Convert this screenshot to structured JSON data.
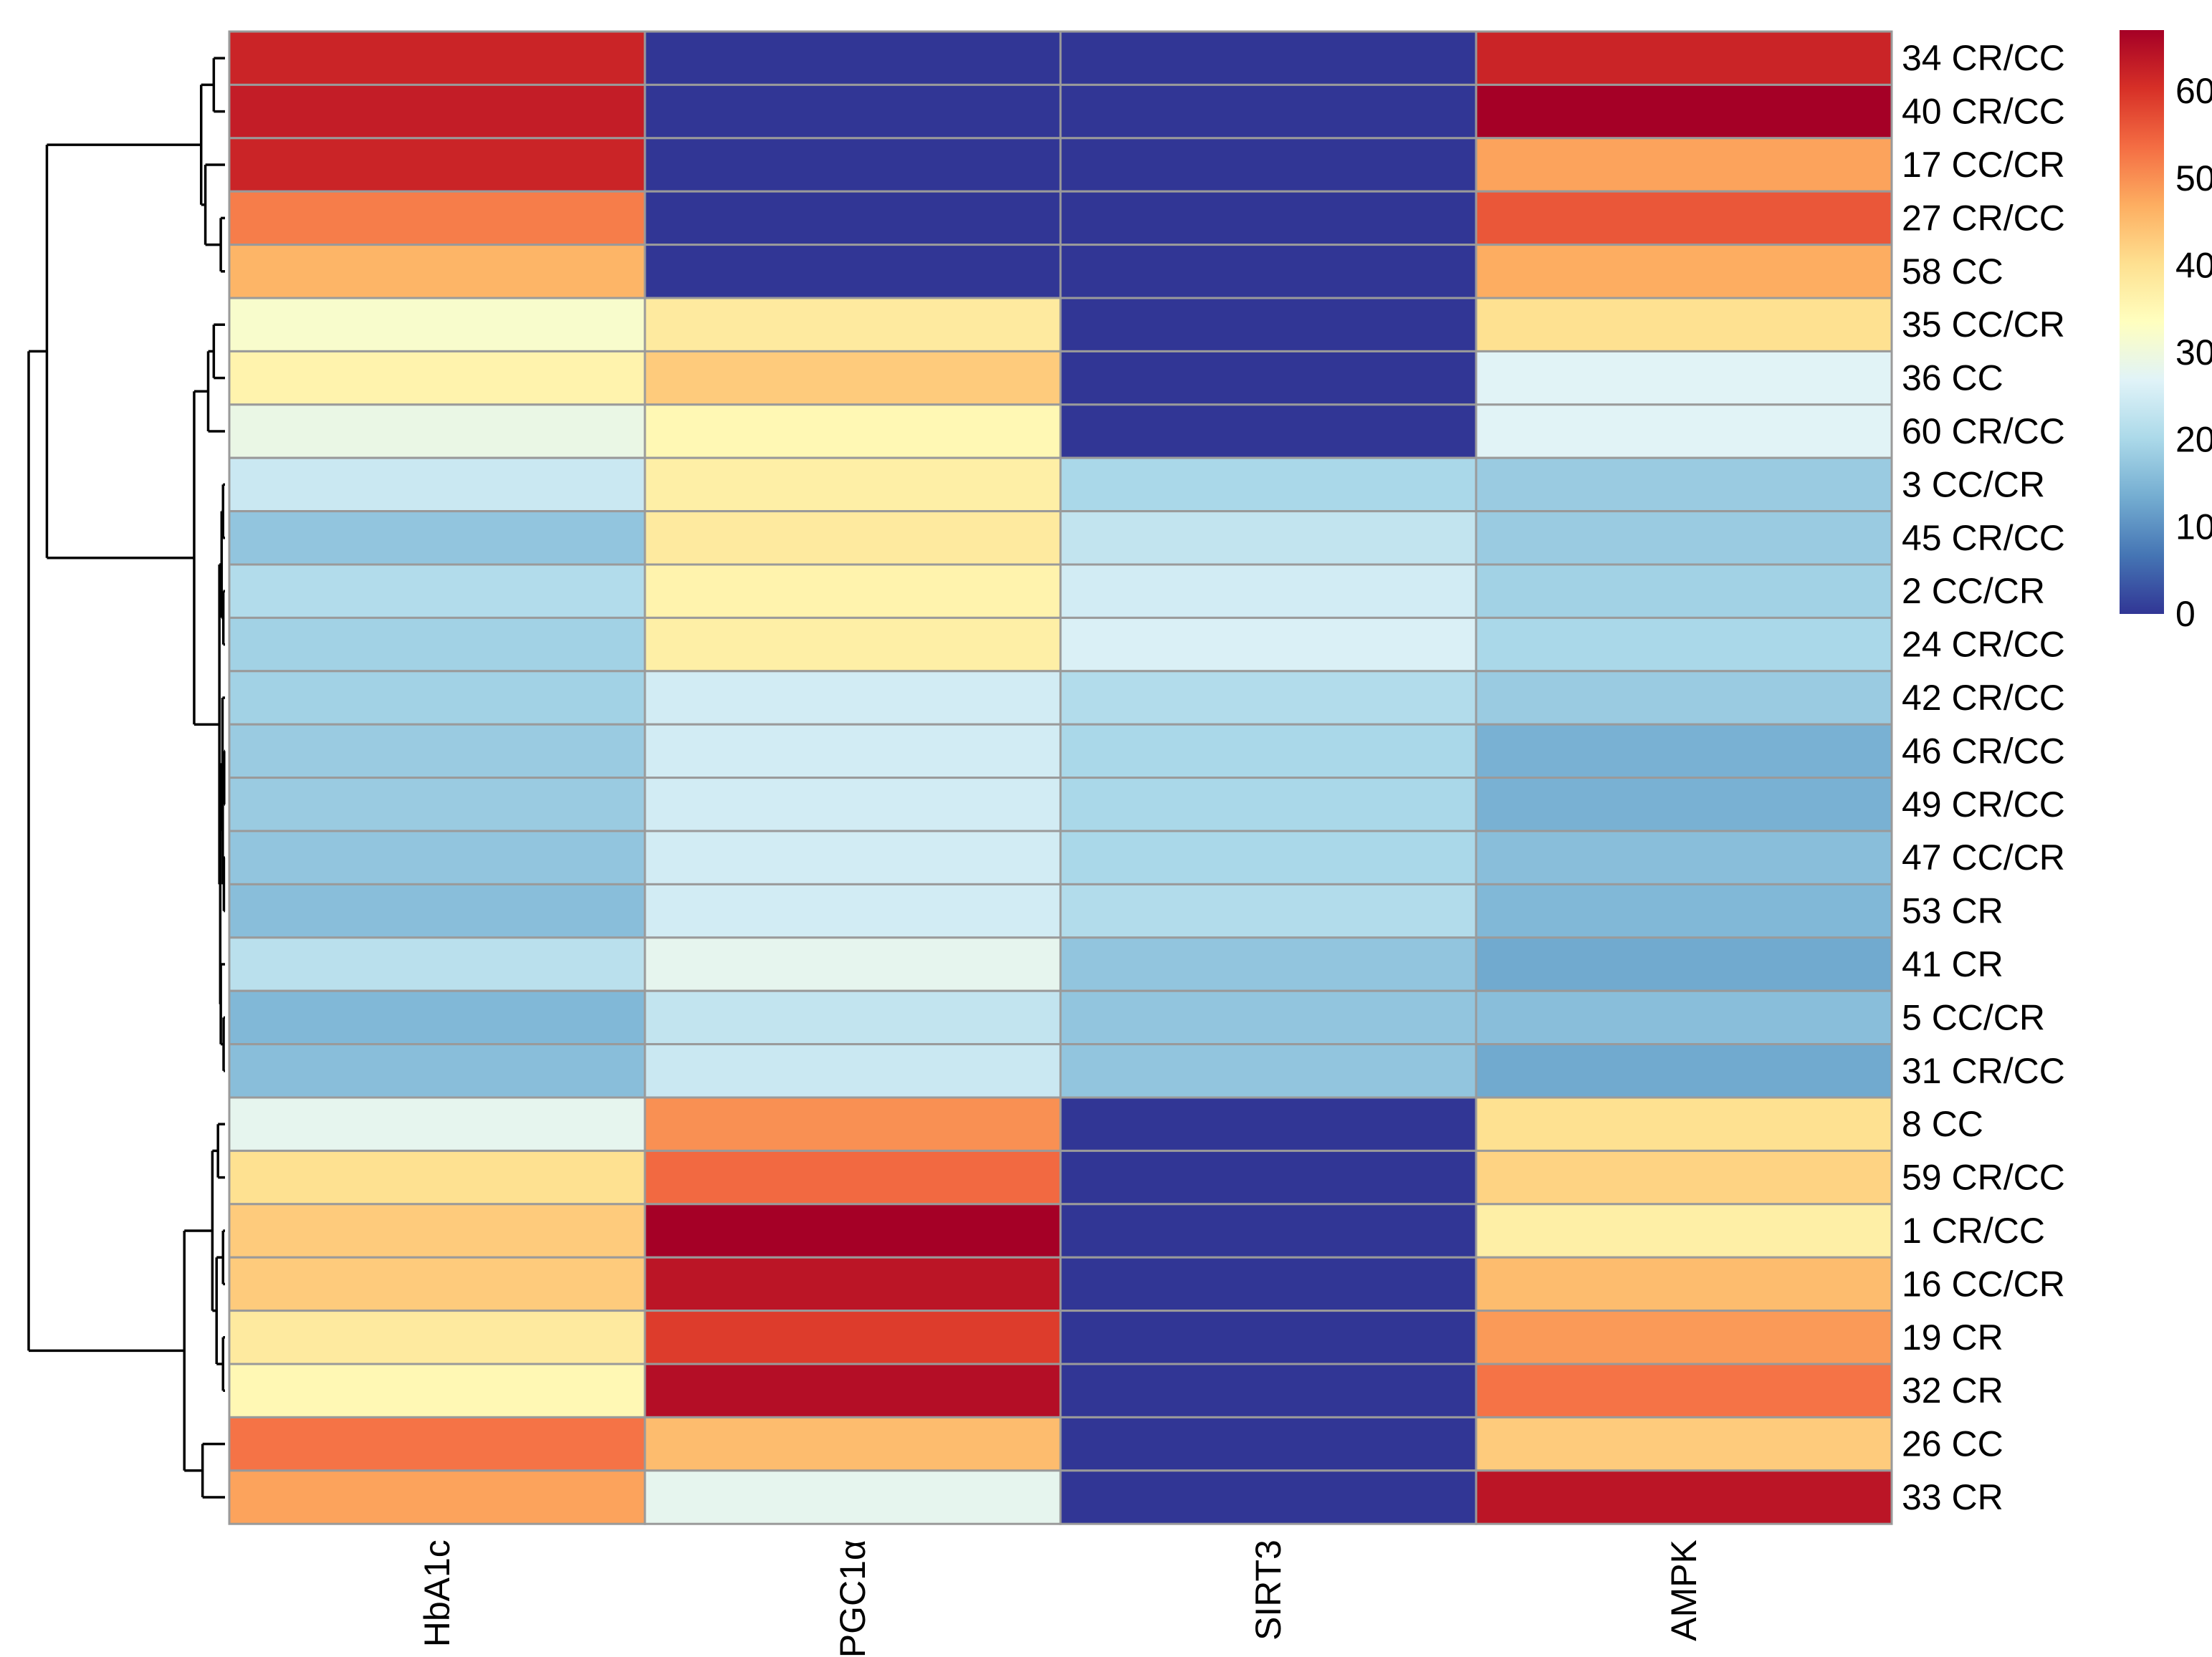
{
  "chart_data": {
    "type": "heatmap",
    "columns": [
      "HbA1c",
      "PGC1α",
      "SIRT3",
      "AMPK"
    ],
    "rows": [
      {
        "label": "34 CR/CC",
        "values": [
          62,
          0,
          0,
          62
        ]
      },
      {
        "label": "40 CR/CC",
        "values": [
          63,
          0,
          0,
          67
        ]
      },
      {
        "label": "17 CC/CR",
        "values": [
          62,
          0,
          0,
          48
        ]
      },
      {
        "label": "27 CR/CC",
        "values": [
          52,
          0,
          0,
          56
        ]
      },
      {
        "label": "58 CC",
        "values": [
          46,
          0,
          0,
          47
        ]
      },
      {
        "label": "35 CC/CR",
        "values": [
          32,
          38,
          0,
          40
        ]
      },
      {
        "label": "36 CC",
        "values": [
          36,
          43,
          0,
          27
        ]
      },
      {
        "label": "60 CR/CC",
        "values": [
          29,
          35,
          0,
          27
        ]
      },
      {
        "label": "3 CC/CR",
        "values": [
          24,
          37,
          20,
          18
        ]
      },
      {
        "label": "45 CR/CC",
        "values": [
          17,
          38,
          23,
          18
        ]
      },
      {
        "label": "2 CC/CR",
        "values": [
          21,
          36,
          25,
          19
        ]
      },
      {
        "label": "24 CR/CC",
        "values": [
          19,
          37,
          26,
          20
        ]
      },
      {
        "label": "42 CR/CC",
        "values": [
          19,
          25,
          21,
          18
        ]
      },
      {
        "label": "46 CR/CC",
        "values": [
          18,
          25,
          20,
          14
        ]
      },
      {
        "label": "49 CR/CC",
        "values": [
          18,
          25,
          20,
          14
        ]
      },
      {
        "label": "47 CC/CR",
        "values": [
          17,
          25,
          20,
          16
        ]
      },
      {
        "label": "53 CR",
        "values": [
          16,
          25,
          21,
          15
        ]
      },
      {
        "label": "41 CR",
        "values": [
          22,
          28,
          17,
          13
        ]
      },
      {
        "label": "5 CC/CR",
        "values": [
          15,
          23,
          17,
          16
        ]
      },
      {
        "label": "31 CR/CC",
        "values": [
          16,
          24,
          17,
          13
        ]
      },
      {
        "label": "8 CC",
        "values": [
          28,
          50,
          0,
          40
        ]
      },
      {
        "label": "59 CR/CC",
        "values": [
          40,
          54,
          0,
          42
        ]
      },
      {
        "label": "1 CR/CC",
        "values": [
          43,
          67,
          0,
          37
        ]
      },
      {
        "label": "16 CC/CR",
        "values": [
          43,
          64,
          0,
          45
        ]
      },
      {
        "label": "19 CR",
        "values": [
          38,
          59,
          0,
          49
        ]
      },
      {
        "label": "32 CR",
        "values": [
          35,
          65,
          0,
          53
        ]
      },
      {
        "label": "26 CC",
        "values": [
          53,
          45,
          0,
          43
        ]
      },
      {
        "label": "33 CR",
        "values": [
          48,
          28,
          0,
          64
        ]
      }
    ],
    "dendrogram": {
      "children": [
        {
          "height": 6.35,
          "children": [
            {
              "height": 0.85,
              "children": [
                {
                  "height": 0.4,
                  "children": [
                    {
                      "leaf": 0
                    },
                    {
                      "leaf": 1
                    }
                  ]
                },
                {
                  "height": 0.7,
                  "children": [
                    {
                      "leaf": 2
                    },
                    {
                      "height": 0.15,
                      "children": [
                        {
                          "leaf": 3
                        },
                        {
                          "leaf": 4
                        }
                      ]
                    }
                  ]
                }
              ]
            },
            {
              "height": 1.1,
              "children": [
                {
                  "height": 0.6,
                  "children": [
                    {
                      "height": 0.4,
                      "children": [
                        {
                          "leaf": 5
                        },
                        {
                          "leaf": 6
                        }
                      ]
                    },
                    {
                      "leaf": 7
                    }
                  ]
                },
                {
                  "height": 0.2,
                  "children": [
                    {
                      "height": 0.12,
                      "children": [
                        {
                          "height": 0.07,
                          "children": [
                            {
                              "leaf": 8
                            },
                            {
                              "leaf": 9
                            }
                          ]
                        },
                        {
                          "height": 0.06,
                          "children": [
                            {
                              "leaf": 10
                            },
                            {
                              "leaf": 11
                            }
                          ]
                        }
                      ]
                    },
                    {
                      "height": 0.17,
                      "children": [
                        {
                          "height": 0.09,
                          "children": [
                            {
                              "leaf": 12
                            },
                            {
                              "height": 0.08,
                              "children": [
                                {
                                  "height": 0.03,
                                  "children": [
                                    {
                                      "leaf": 13
                                    },
                                    {
                                      "leaf": 14
                                    }
                                  ]
                                },
                                {
                                  "height": 0.04,
                                  "children": [
                                    {
                                      "leaf": 15
                                    },
                                    {
                                      "leaf": 16
                                    }
                                  ]
                                }
                              ]
                            }
                          ]
                        },
                        {
                          "height": 0.15,
                          "children": [
                            {
                              "leaf": 17
                            },
                            {
                              "height": 0.05,
                              "children": [
                                {
                                  "leaf": 18
                                },
                                {
                                  "leaf": 19
                                }
                              ]
                            }
                          ]
                        }
                      ]
                    }
                  ]
                }
              ]
            }
          ]
        },
        {
          "height": 1.45,
          "children": [
            {
              "height": 0.45,
              "children": [
                {
                  "height": 0.25,
                  "children": [
                    {
                      "leaf": 20
                    },
                    {
                      "leaf": 21
                    }
                  ]
                },
                {
                  "height": 0.3,
                  "children": [
                    {
                      "height": 0.07,
                      "children": [
                        {
                          "leaf": 22
                        },
                        {
                          "leaf": 23
                        }
                      ]
                    },
                    {
                      "height": 0.07,
                      "children": [
                        {
                          "leaf": 24
                        },
                        {
                          "leaf": 25
                        }
                      ]
                    }
                  ]
                }
              ]
            },
            {
              "height": 0.8,
              "children": [
                {
                  "leaf": 26
                },
                {
                  "leaf": 27
                }
              ]
            }
          ]
        }
      ],
      "height": 7.0
    },
    "legend": {
      "min": 0,
      "max": 67,
      "ticks": [
        0,
        10,
        20,
        30,
        40,
        50,
        60
      ],
      "colors": [
        "#313695",
        "#4575b4",
        "#74add1",
        "#abd9e9",
        "#e0f3f8",
        "#ffffbf",
        "#fee090",
        "#fdae61",
        "#f46d43",
        "#d73027",
        "#a50026"
      ],
      "placement": "top-right"
    },
    "cell_border_color": "#9a9a9a"
  }
}
